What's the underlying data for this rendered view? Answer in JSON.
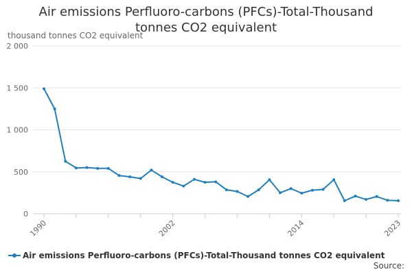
{
  "chart_data": {
    "type": "line",
    "title_lines": [
      "Air emissions Perfluoro-carbons (PFCs)-Total-Thousand",
      "tonnes CO2 equivalent"
    ],
    "ylabel": "thousand tonnes CO2 equivalent",
    "ylim": [
      0,
      2000
    ],
    "yticks": [
      0,
      500,
      1000,
      1500,
      2000
    ],
    "ytick_labels": [
      "0",
      "500",
      "1 000",
      "1 500",
      "2 000"
    ],
    "xlim": [
      1990,
      2023
    ],
    "xtick_labels": [
      {
        "year": 1990,
        "label": "1990"
      },
      {
        "year": 2002,
        "label": "2002"
      },
      {
        "year": 2014,
        "label": "2014"
      },
      {
        "year": 2023,
        "label": "2023"
      }
    ],
    "x": [
      1990,
      1991,
      1992,
      1993,
      1994,
      1995,
      1996,
      1997,
      1998,
      1999,
      2000,
      2001,
      2002,
      2003,
      2004,
      2005,
      2006,
      2007,
      2008,
      2009,
      2010,
      2011,
      2012,
      2013,
      2014,
      2015,
      2016,
      2017,
      2018,
      2019,
      2020,
      2021,
      2022,
      2023
    ],
    "series": [
      {
        "name": "Air emissions Perfluoro-carbons (PFCs)-Total-Thousand tonnes CO2 equivalent",
        "values": [
          1490,
          1250,
          625,
          545,
          550,
          540,
          540,
          455,
          440,
          420,
          520,
          440,
          375,
          330,
          410,
          375,
          380,
          285,
          265,
          205,
          285,
          405,
          250,
          300,
          245,
          280,
          290,
          405,
          155,
          210,
          170,
          205,
          160,
          155
        ]
      }
    ],
    "legend_position": "bottom",
    "grid": true
  },
  "colors": {
    "series": "#1d7fbf",
    "grid": "#e6e6e6",
    "axis": "#cccccc",
    "tick_text": "#666666"
  },
  "legend": {
    "label": "Air emissions Perfluoro-carbons (PFCs)-Total-Thousand tonnes CO2 equivalent"
  },
  "footer": {
    "source": "Source:"
  }
}
